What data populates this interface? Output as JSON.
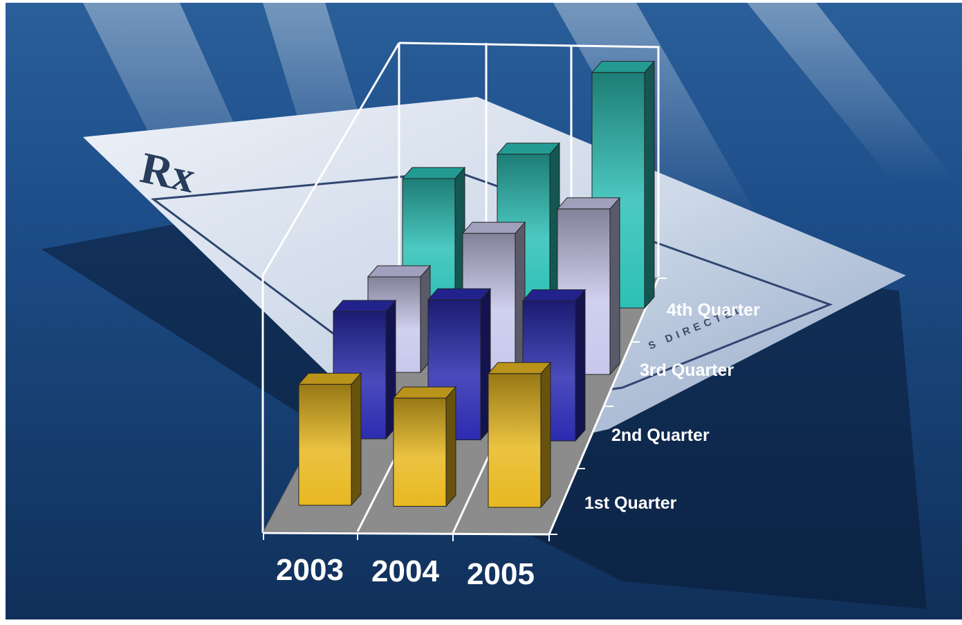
{
  "background": {
    "rx_symbol": "Rx",
    "paper_text": "S DIRECTED",
    "colors": {
      "sky": "#1b4a80",
      "paper": "#dfe6f0"
    }
  },
  "chart_data": {
    "type": "bar",
    "subtype": "3d-column",
    "title": "",
    "xlabel": "",
    "ylabel": "",
    "categories": [
      "2003",
      "2004",
      "2005"
    ],
    "series": [
      {
        "name": "1st Quarter",
        "values": [
          38,
          34,
          42
        ],
        "color": "#e8b820"
      },
      {
        "name": "2nd Quarter",
        "values": [
          40,
          44,
          44
        ],
        "color": "#2b2bb0"
      },
      {
        "name": "3rd Quarter",
        "values": [
          30,
          44,
          52
        ],
        "color": "#c8c8ec"
      },
      {
        "name": "4th Quarter",
        "values": [
          40,
          48,
          74
        ],
        "color": "#2cc0b6"
      }
    ],
    "ylim": [
      0,
      100
    ],
    "grid": false,
    "legend": "none"
  }
}
